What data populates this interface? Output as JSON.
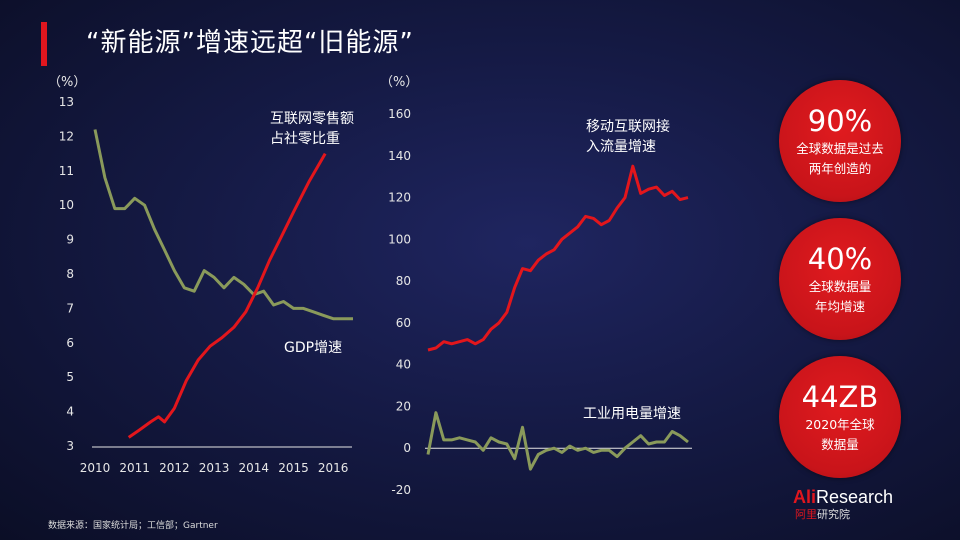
{
  "slide": {
    "title": "“新能源”增速远超“旧能源”",
    "source": "数据来源：国家统计局；工信部；Gartner"
  },
  "logo": {
    "prefix": "Ali",
    "suffix": "Research",
    "cn_red": "阿里",
    "cn_rest": "研究院"
  },
  "stats": [
    {
      "value": "90%",
      "label": "全球数据是过去\n两年创造的"
    },
    {
      "value": "40%",
      "label": "全球数据量\n年均增速"
    },
    {
      "value": "44ZB",
      "label": "2020年全球\n数据量"
    }
  ],
  "colors": {
    "accent": "#e0161e",
    "green": "#8a9a5b",
    "red_line": "#e3161c"
  },
  "chart_data": [
    {
      "type": "line",
      "ylabel": "（%）",
      "ylim": [
        3,
        13
      ],
      "yticks": [
        "13",
        "12",
        "11",
        "10",
        "9",
        "8",
        "7",
        "6",
        "5",
        "4",
        "3"
      ],
      "xlim": [
        2010,
        2016.5
      ],
      "xticks": [
        "2010",
        "2011",
        "2012",
        "2013",
        "2014",
        "2015",
        "2016"
      ],
      "grid": false,
      "series": [
        {
          "name": "GDP增速",
          "color": "#8a9a5b",
          "points": [
            [
              2010.0,
              12.2
            ],
            [
              2010.25,
              10.8
            ],
            [
              2010.5,
              9.9
            ],
            [
              2010.75,
              9.9
            ],
            [
              2011.0,
              10.2
            ],
            [
              2011.25,
              10.0
            ],
            [
              2011.5,
              9.3
            ],
            [
              2011.75,
              8.7
            ],
            [
              2012.0,
              8.1
            ],
            [
              2012.25,
              7.6
            ],
            [
              2012.5,
              7.5
            ],
            [
              2012.75,
              8.1
            ],
            [
              2013.0,
              7.9
            ],
            [
              2013.25,
              7.6
            ],
            [
              2013.5,
              7.9
            ],
            [
              2013.75,
              7.7
            ],
            [
              2014.0,
              7.4
            ],
            [
              2014.25,
              7.5
            ],
            [
              2014.5,
              7.1
            ],
            [
              2014.75,
              7.2
            ],
            [
              2015.0,
              7.0
            ],
            [
              2015.25,
              7.0
            ],
            [
              2015.5,
              6.9
            ],
            [
              2015.75,
              6.8
            ],
            [
              2016.0,
              6.7
            ],
            [
              2016.5,
              6.7
            ]
          ]
        },
        {
          "name": "互联网零售额\n占社零比重",
          "color": "#e3161c",
          "points": [
            [
              2010.85,
              3.25
            ],
            [
              2011.1,
              3.45
            ],
            [
              2011.4,
              3.7
            ],
            [
              2011.6,
              3.85
            ],
            [
              2011.75,
              3.7
            ],
            [
              2012.0,
              4.1
            ],
            [
              2012.3,
              4.9
            ],
            [
              2012.6,
              5.5
            ],
            [
              2012.9,
              5.9
            ],
            [
              2013.2,
              6.15
            ],
            [
              2013.5,
              6.45
            ],
            [
              2013.8,
              6.9
            ],
            [
              2014.1,
              7.6
            ],
            [
              2014.4,
              8.4
            ],
            [
              2014.7,
              9.1
            ],
            [
              2015.0,
              9.8
            ],
            [
              2015.4,
              10.7
            ],
            [
              2015.8,
              11.5
            ]
          ]
        }
      ]
    },
    {
      "type": "line",
      "ylabel": "（%）",
      "ylim": [
        -20,
        160
      ],
      "yticks": [
        "160",
        "140",
        "120",
        "100",
        "80",
        "60",
        "40",
        "20",
        "0",
        "-20"
      ],
      "grid": false,
      "series": [
        {
          "name": "移动互联网接\n入流量增速",
          "color": "#e3161c",
          "values": [
            47,
            48,
            51,
            50,
            51,
            52,
            50,
            52,
            57,
            60,
            65,
            77,
            86,
            85,
            90,
            93,
            95,
            100,
            103,
            106,
            111,
            110,
            107,
            109,
            115,
            120,
            135,
            122,
            124,
            125,
            121,
            123,
            119,
            120
          ]
        },
        {
          "name": "工业用电量增速",
          "color": "#8a9a5b",
          "values": [
            -3,
            17,
            4,
            4,
            5,
            4,
            3,
            -1,
            5,
            3,
            2,
            -5,
            10,
            -10,
            -3,
            -1,
            0,
            -2,
            1,
            -1,
            0,
            -2,
            -1,
            -1,
            -4,
            0,
            3,
            6,
            2,
            3,
            3,
            8,
            6,
            3
          ]
        }
      ]
    }
  ]
}
